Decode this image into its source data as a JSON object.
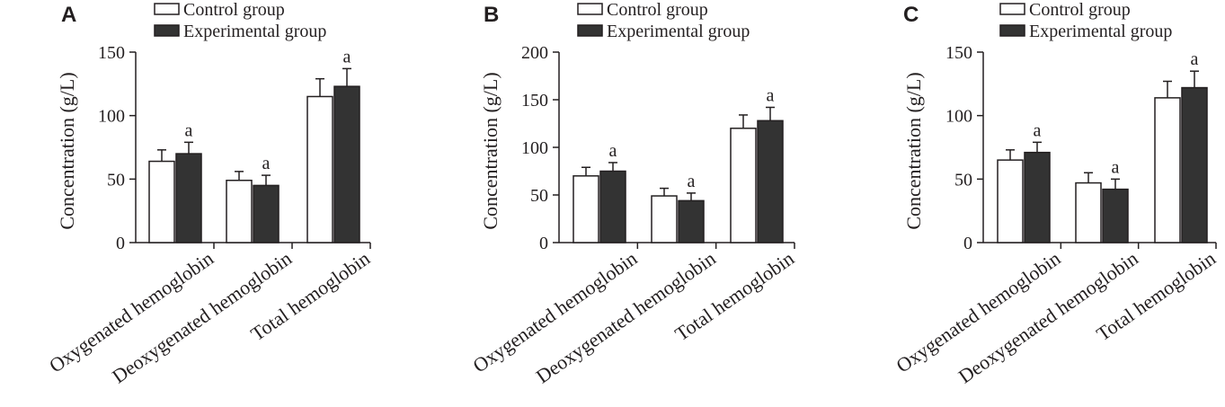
{
  "chart_data": [
    {
      "type": "bar",
      "panel_label": "A",
      "categories": [
        "Oxygenated hemoglobin",
        "Deoxygenated hemoglobin",
        "Total hemoglobin"
      ],
      "series": [
        {
          "name": "Control group",
          "values": [
            64,
            49,
            115
          ],
          "errors": [
            9,
            7,
            14
          ],
          "fill": "#ffffff"
        },
        {
          "name": "Experimental group",
          "values": [
            70,
            45,
            123
          ],
          "errors": [
            9,
            8,
            14
          ],
          "fill": "#333333"
        }
      ],
      "significance_labels": [
        {
          "category": "Oxygenated hemoglobin",
          "series": "Experimental group",
          "text": "a"
        },
        {
          "category": "Deoxygenated hemoglobin",
          "series": "Experimental group",
          "text": "a"
        },
        {
          "category": "Total hemoglobin",
          "series": "Experimental group",
          "text": "a"
        }
      ],
      "ylabel": "Concentration (g/L)",
      "ylim": [
        0,
        150
      ],
      "yticks": [
        0,
        50,
        100,
        150
      ]
    },
    {
      "type": "bar",
      "panel_label": "B",
      "categories": [
        "Oxygenated hemoglobin",
        "Deoxygenated hemoglobin",
        "Total hemoglobin"
      ],
      "series": [
        {
          "name": "Control group",
          "values": [
            70,
            49,
            120
          ],
          "errors": [
            9,
            8,
            14
          ],
          "fill": "#ffffff"
        },
        {
          "name": "Experimental group",
          "values": [
            75,
            44,
            128
          ],
          "errors": [
            9,
            8,
            14
          ],
          "fill": "#333333"
        }
      ],
      "significance_labels": [
        {
          "category": "Oxygenated hemoglobin",
          "series": "Experimental group",
          "text": "a"
        },
        {
          "category": "Deoxygenated hemoglobin",
          "series": "Experimental group",
          "text": "a"
        },
        {
          "category": "Total hemoglobin",
          "series": "Experimental group",
          "text": "a"
        }
      ],
      "ylabel": "Concentration (g/L)",
      "ylim": [
        0,
        200
      ],
      "yticks": [
        0,
        50,
        100,
        150,
        200
      ]
    },
    {
      "type": "bar",
      "panel_label": "C",
      "categories": [
        "Oxygenated hemoglobin",
        "Deoxygenated hemoglobin",
        "Total hemoglobin"
      ],
      "series": [
        {
          "name": "Control group",
          "values": [
            65,
            47,
            114
          ],
          "errors": [
            8,
            8,
            13
          ],
          "fill": "#ffffff"
        },
        {
          "name": "Experimental group",
          "values": [
            71,
            42,
            122
          ],
          "errors": [
            8,
            8,
            13
          ],
          "fill": "#333333"
        }
      ],
      "significance_labels": [
        {
          "category": "Oxygenated hemoglobin",
          "series": "Experimental group",
          "text": "a"
        },
        {
          "category": "Deoxygenated hemoglobin",
          "series": "Experimental group",
          "text": "a"
        },
        {
          "category": "Total hemoglobin",
          "series": "Experimental group",
          "text": "a"
        }
      ],
      "ylabel": "Concentration (g/L)",
      "ylim": [
        0,
        150
      ],
      "yticks": [
        0,
        50,
        100,
        150
      ]
    }
  ]
}
